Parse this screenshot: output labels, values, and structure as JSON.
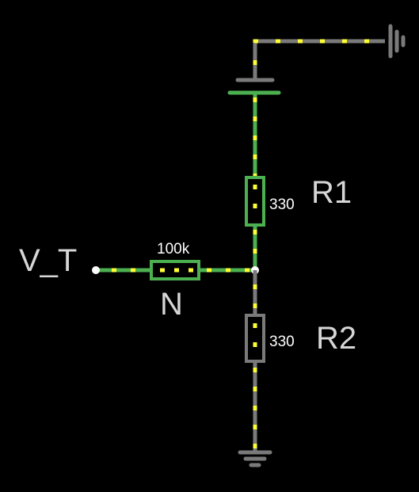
{
  "circuit": {
    "input_label": "V_T",
    "top_resistor": {
      "name": "R1",
      "value": "330"
    },
    "bottom_resistor": {
      "name": "R2",
      "value": "330"
    },
    "input_resistor": {
      "name": "N",
      "value": "100k"
    },
    "components": [
      "battery",
      "ground-top-right",
      "ground-bottom",
      "input-terminal",
      "junction"
    ]
  },
  "colors": {
    "background": "#000000",
    "wire_gray": "#7a7a7a",
    "wire_active": "#4caf50",
    "current_dots": "#ffff33",
    "label_text": "#d6d6d6",
    "value_text": "#ffffff"
  }
}
